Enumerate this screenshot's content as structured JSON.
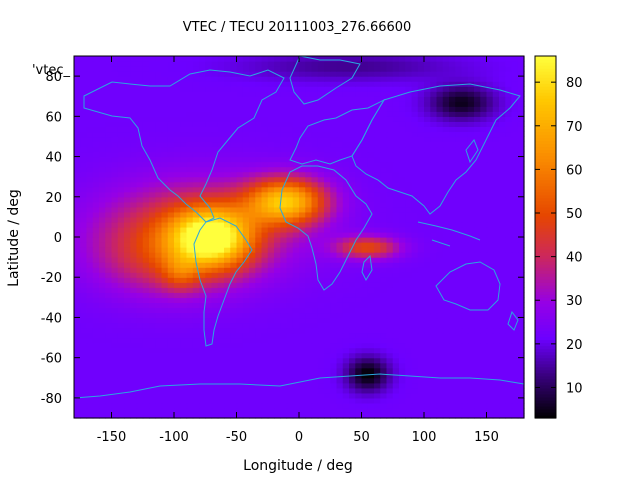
{
  "chart_data": {
    "type": "heatmap",
    "title": "VTEC / TECU 20111003_276.66600",
    "key_label": "'vtec_",
    "xlabel": "Longitude / deg",
    "ylabel": "Latitude / deg",
    "xlim": [
      -180,
      180
    ],
    "ylim": [
      -90,
      90
    ],
    "xticks": [
      -150,
      -100,
      -50,
      0,
      50,
      100,
      150
    ],
    "yticks": [
      -80,
      -60,
      -40,
      -20,
      0,
      20,
      40,
      60,
      80
    ],
    "colorbar": {
      "min": 3,
      "max": 86,
      "ticks": [
        10,
        20,
        30,
        40,
        50,
        60,
        70,
        80
      ]
    },
    "background_value": 22,
    "features": [
      {
        "name": "equatorial anomaly south America",
        "lon": -70,
        "lat": 0,
        "sigma_lon": 22,
        "sigma_lat": 10,
        "amplitude": 50
      },
      {
        "name": "northern crest Atlantic",
        "lon": -10,
        "lat": 18,
        "sigma_lon": 22,
        "sigma_lat": 8,
        "amplitude": 48
      },
      {
        "name": "equatorial belt",
        "lon": -80,
        "lat": 5,
        "sigma_lon": 55,
        "sigma_lat": 17,
        "amplitude": 22
      },
      {
        "name": "southern crest",
        "lon": -105,
        "lat": -10,
        "sigma_lon": 40,
        "sigma_lat": 14,
        "amplitude": 16
      },
      {
        "name": "secondary southern peak",
        "lon": -95,
        "lat": -18,
        "sigma_lon": 10,
        "sigma_lat": 6,
        "amplitude": 12
      },
      {
        "name": "Indian Ocean patch",
        "lon": 55,
        "lat": -5,
        "sigma_lon": 18,
        "sigma_lat": 4,
        "amplitude": 26
      },
      {
        "name": "Antarctic low",
        "lon": 55,
        "lat": -68,
        "sigma_lon": 12,
        "sigma_lat": 6,
        "amplitude": -19
      },
      {
        "name": "Siberian low",
        "lon": 130,
        "lat": 67,
        "sigma_lon": 18,
        "sigma_lat": 6,
        "amplitude": -17
      },
      {
        "name": "north polar low",
        "lon": 40,
        "lat": 85,
        "sigma_lon": 60,
        "sigma_lat": 5,
        "amplitude": -8
      }
    ]
  }
}
